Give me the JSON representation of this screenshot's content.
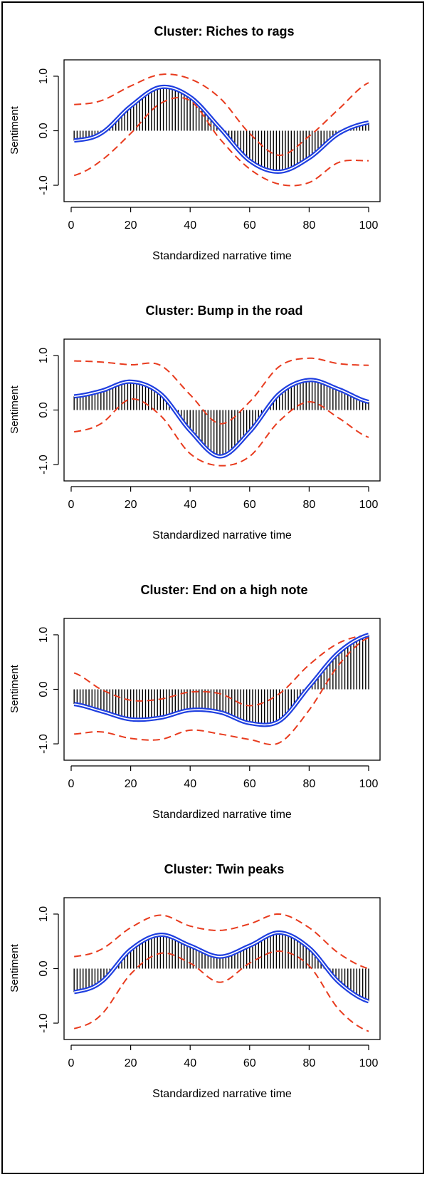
{
  "chart_data": [
    {
      "type": "line",
      "title": "Cluster: Riches to rags",
      "xlabel": "Standardized narrative time",
      "ylabel": "Sentiment",
      "xlim": [
        0,
        100
      ],
      "ylim": [
        -1.3,
        1.3
      ],
      "xticks": [
        0,
        20,
        40,
        60,
        80,
        100
      ],
      "yticks": [
        -1.0,
        0.0,
        1.0
      ],
      "x": [
        1,
        10,
        20,
        30,
        40,
        50,
        60,
        70,
        80,
        90,
        100
      ],
      "series": [
        {
          "name": "mean",
          "values": [
            -0.18,
            -0.05,
            0.45,
            0.8,
            0.62,
            0.05,
            -0.55,
            -0.75,
            -0.5,
            -0.05,
            0.15
          ]
        },
        {
          "name": "upper bound",
          "values": [
            0.48,
            0.55,
            0.82,
            1.03,
            0.95,
            0.6,
            -0.05,
            -0.45,
            -0.1,
            0.4,
            0.88
          ]
        },
        {
          "name": "lower bound",
          "values": [
            -0.82,
            -0.55,
            -0.05,
            0.5,
            0.55,
            -0.15,
            -0.7,
            -0.98,
            -0.95,
            -0.58,
            -0.55
          ]
        }
      ]
    },
    {
      "type": "line",
      "title": "Cluster: Bump in the road",
      "xlabel": "Standardized narrative time",
      "ylabel": "Sentiment",
      "xlim": [
        0,
        100
      ],
      "ylim": [
        -1.3,
        1.3
      ],
      "xticks": [
        0,
        20,
        40,
        60,
        80,
        100
      ],
      "yticks": [
        -1.0,
        0.0,
        1.0
      ],
      "x": [
        1,
        10,
        20,
        30,
        40,
        50,
        60,
        70,
        80,
        90,
        100
      ],
      "series": [
        {
          "name": "mean",
          "values": [
            0.25,
            0.35,
            0.52,
            0.3,
            -0.38,
            -0.85,
            -0.4,
            0.3,
            0.55,
            0.38,
            0.15
          ]
        },
        {
          "name": "upper bound",
          "values": [
            0.9,
            0.88,
            0.83,
            0.82,
            0.28,
            -0.25,
            0.15,
            0.8,
            0.95,
            0.85,
            0.82
          ]
        },
        {
          "name": "lower bound",
          "values": [
            -0.4,
            -0.25,
            0.2,
            -0.1,
            -0.8,
            -1.02,
            -0.85,
            -0.2,
            0.15,
            -0.15,
            -0.5
          ]
        }
      ]
    },
    {
      "type": "line",
      "title": "Cluster: End on a high note",
      "xlabel": "Standardized narrative time",
      "ylabel": "Sentiment",
      "xlim": [
        0,
        100
      ],
      "ylim": [
        -1.3,
        1.3
      ],
      "xticks": [
        0,
        20,
        40,
        60,
        80,
        100
      ],
      "yticks": [
        -1.0,
        0.0,
        1.0
      ],
      "x": [
        1,
        10,
        20,
        30,
        40,
        50,
        60,
        70,
        80,
        90,
        100
      ],
      "series": [
        {
          "name": "mean",
          "values": [
            -0.27,
            -0.4,
            -0.55,
            -0.52,
            -0.38,
            -0.42,
            -0.62,
            -0.58,
            0.05,
            0.68,
            1.0
          ]
        },
        {
          "name": "upper bound",
          "values": [
            0.3,
            0.0,
            -0.2,
            -0.18,
            -0.05,
            -0.08,
            -0.3,
            -0.08,
            0.45,
            0.85,
            1.0
          ]
        },
        {
          "name": "lower bound",
          "values": [
            -0.82,
            -0.78,
            -0.9,
            -0.92,
            -0.75,
            -0.82,
            -0.92,
            -0.98,
            -0.38,
            0.45,
            0.95
          ]
        }
      ]
    },
    {
      "type": "line",
      "title": "Cluster: Twin peaks",
      "xlabel": "Standardized narrative time",
      "ylabel": "Sentiment",
      "xlim": [
        0,
        100
      ],
      "ylim": [
        -1.3,
        1.3
      ],
      "xticks": [
        0,
        20,
        40,
        60,
        80,
        100
      ],
      "yticks": [
        -1.0,
        0.0,
        1.0
      ],
      "x": [
        1,
        10,
        20,
        30,
        40,
        50,
        60,
        70,
        80,
        90,
        100
      ],
      "series": [
        {
          "name": "mean",
          "values": [
            -0.43,
            -0.25,
            0.35,
            0.62,
            0.42,
            0.22,
            0.42,
            0.66,
            0.38,
            -0.25,
            -0.6
          ]
        },
        {
          "name": "upper bound",
          "values": [
            0.22,
            0.35,
            0.75,
            0.98,
            0.78,
            0.7,
            0.82,
            1.0,
            0.75,
            0.28,
            0.0
          ]
        },
        {
          "name": "lower bound",
          "values": [
            -1.1,
            -0.85,
            -0.1,
            0.28,
            0.1,
            -0.25,
            0.1,
            0.32,
            0.05,
            -0.75,
            -1.15
          ]
        }
      ]
    }
  ],
  "colors": {
    "mean": "#1f3fe0",
    "bounds": "#e83b1e",
    "bars": "#000000"
  }
}
